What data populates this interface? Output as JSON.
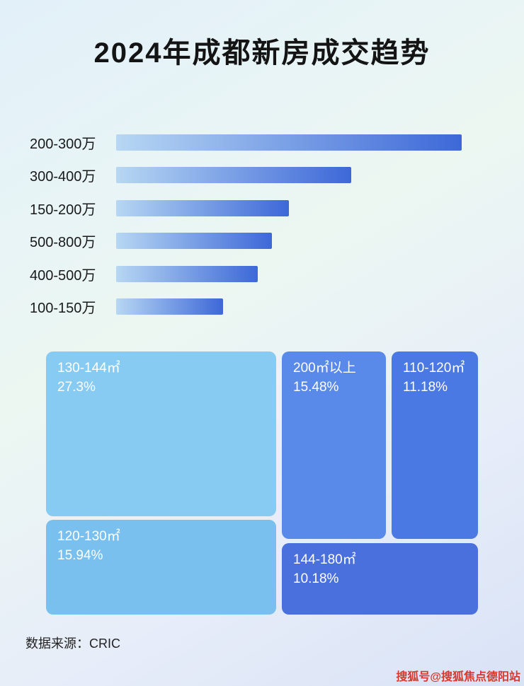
{
  "title": "2024年成都新房成交趋势",
  "source_note": "数据来源：CRIC",
  "watermark": {
    "text": "搜狐号@搜狐焦点德阳站",
    "color": "#d63a2f"
  },
  "chart_data": [
    {
      "type": "bar",
      "orientation": "horizontal",
      "title": "2024年成都新房成交趋势",
      "categories": [
        "200-300万",
        "300-400万",
        "150-200万",
        "500-800万",
        "400-500万",
        "100-150万"
      ],
      "values": [
        100,
        68,
        50,
        45,
        41,
        31
      ],
      "value_note": "relative bar length in % of longest bar; no numeric axis shown",
      "bar_gradient": [
        "#b7d7f3",
        "#3d68d8"
      ],
      "xlabel": "",
      "ylabel": "",
      "grid": false,
      "legend": false
    },
    {
      "type": "treemap",
      "items": [
        {
          "label": "130-144㎡",
          "value": 27.3,
          "display": "27.3%",
          "color": "#87cbf3"
        },
        {
          "label": "200㎡以上",
          "value": 15.48,
          "display": "15.48%",
          "color": "#5a8ae9"
        },
        {
          "label": "110-120㎡",
          "value": 11.18,
          "display": "11.18%",
          "color": "#4b79e3"
        },
        {
          "label": "120-130㎡",
          "value": 15.94,
          "display": "15.94%",
          "color": "#79c0ee"
        },
        {
          "label": "144-180㎡",
          "value": 10.18,
          "display": "10.18%",
          "color": "#4a70de"
        }
      ]
    }
  ]
}
